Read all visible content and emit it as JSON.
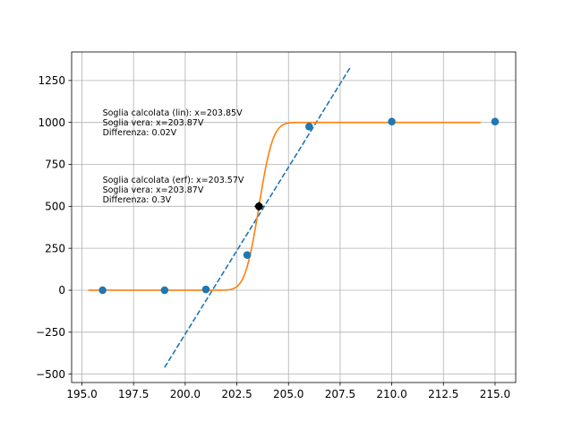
{
  "chart_data": {
    "type": "scatter",
    "xlim": [
      194.5,
      216.0
    ],
    "ylim": [
      -550,
      1420
    ],
    "xticks": [
      195.0,
      197.5,
      200.0,
      202.5,
      205.0,
      207.5,
      210.0,
      212.5,
      215.0
    ],
    "xtick_labels": [
      "195.0",
      "197.5",
      "200.0",
      "202.5",
      "205.0",
      "207.5",
      "210.0",
      "212.5",
      "215.0"
    ],
    "yticks": [
      -500,
      -250,
      0,
      250,
      500,
      750,
      1000,
      1250
    ],
    "ytick_labels": [
      "−500",
      "−250",
      "0",
      "250",
      "500",
      "750",
      "1000",
      "1250"
    ],
    "grid": true,
    "colors": {
      "points": "#1f77b4",
      "linear_fit": "#1f77b4",
      "erf_fit": "#ff7f0e",
      "threshold_marker": "#000000",
      "grid": "#b0b0b0"
    },
    "series": [
      {
        "kind": "scatter",
        "x": [
          196,
          199,
          201,
          203,
          206,
          210,
          215
        ],
        "y": [
          0,
          0,
          5,
          210,
          975,
          1005,
          1005
        ]
      },
      {
        "kind": "line-dashed",
        "x": [
          199,
          208
        ],
        "y": [
          -460,
          1330
        ]
      },
      {
        "kind": "line",
        "x_range": [
          195.3,
          214.3
        ],
        "erf_center": 203.57,
        "erf_amplitude": 1000,
        "erf_width": 0.75
      },
      {
        "kind": "marker",
        "x": [
          203.57
        ],
        "y": [
          500
        ]
      }
    ],
    "annotations": [
      {
        "x": 196.0,
        "y": 1040,
        "lines": [
          "Soglia calcolata (lin): x=203.85V",
          "Soglia vera: x=203.87V",
          "Differenza: 0.02V"
        ]
      },
      {
        "x": 196.0,
        "y": 640,
        "lines": [
          "Soglia calcolata (erf): x=203.57V",
          "Soglia vera: x=203.87V",
          "Differenza: 0.3V"
        ]
      }
    ]
  }
}
